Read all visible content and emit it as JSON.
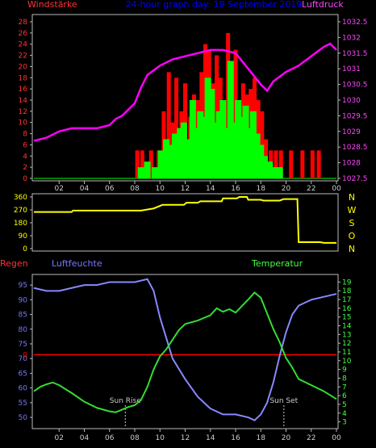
{
  "colors": {
    "background": "#000000",
    "axis": "#bbbbbb",
    "wind_gust": "#ff0000",
    "wind_avg": "#00ff00",
    "pressure": "#ff00ff",
    "direction": "#ffff00",
    "rain_line": "#ff0000",
    "humidity": "#8888ff",
    "temperature": "#33dd33",
    "marker": "#cccccc",
    "left_axis_labels": "#ff3333",
    "right_axis_labels": "#ff44ff",
    "direction_labels": "#ffff00",
    "bottom_left_labels": "#7777ff",
    "bottom_right_labels": "#44ff44",
    "title": "#0000ff"
  },
  "chart_data": [
    {
      "type": "bar",
      "title": "24-hour graph day: 19 September 2019",
      "left_label": "Windstärke",
      "right_label": "Luftdruck",
      "x_ticks": [
        "02",
        "04",
        "06",
        "08",
        "10",
        "12",
        "14",
        "16",
        "18",
        "20",
        "22",
        "00"
      ],
      "y_left_ticks": [
        "0",
        "2",
        "4",
        "6",
        "8",
        "10",
        "12",
        "14",
        "16",
        "18",
        "20",
        "22",
        "24",
        "26",
        "28"
      ],
      "y_right_ticks": [
        "1027.5",
        "1028",
        "1028.5",
        "1029",
        "1029.5",
        "1030",
        "1030.5",
        "1031",
        "1031.5",
        "1032",
        "1032.5"
      ],
      "xlim_hours": [
        0,
        24
      ],
      "ylim_left": [
        0,
        28
      ],
      "ylim_right": [
        1027.5,
        1032.5
      ],
      "series": [
        {
          "name": "",
          "kind": "bar",
          "axis": "left",
          "color_key": "wind_gust",
          "hours": [
            8.2,
            8.6,
            9.3,
            9.9,
            10.3,
            10.7,
            11.0,
            11.3,
            11.7,
            12.0,
            12.4,
            12.7,
            13.0,
            13.3,
            13.6,
            13.9,
            14.2,
            14.5,
            14.8,
            15.1,
            15.4,
            15.7,
            16.0,
            16.3,
            16.6,
            16.9,
            17.2,
            17.5,
            17.8,
            18.1,
            18.4,
            18.8,
            19.2,
            19.6,
            20.4,
            21.3,
            22.1,
            22.6
          ],
          "values": [
            5,
            5,
            5,
            5,
            12,
            19,
            10,
            18,
            12,
            17,
            11,
            15,
            14,
            19,
            24,
            23,
            17,
            22,
            18,
            13,
            26,
            14,
            23,
            12,
            17,
            15,
            16,
            18,
            14,
            12,
            7,
            5,
            5,
            5,
            5,
            5,
            5,
            5
          ]
        },
        {
          "name": "",
          "kind": "bar",
          "axis": "left",
          "color_key": "wind_avg",
          "hours": [
            8.5,
            9.0,
            9.6,
            10.1,
            10.5,
            10.9,
            11.2,
            11.6,
            11.9,
            12.2,
            12.6,
            12.9,
            13.2,
            13.5,
            13.8,
            14.1,
            14.4,
            14.7,
            15.0,
            15.3,
            15.6,
            15.9,
            16.2,
            16.5,
            16.8,
            17.1,
            17.4,
            17.7,
            18.0,
            18.3,
            18.7,
            19.1,
            19.5
          ],
          "values": [
            2,
            3,
            2,
            5,
            7,
            6,
            8,
            9,
            10,
            7,
            14,
            9,
            12,
            11,
            18,
            16,
            10,
            12,
            14,
            9,
            21,
            10,
            14,
            11,
            13,
            9,
            12,
            8,
            6,
            4,
            3,
            2,
            2
          ]
        },
        {
          "name": "",
          "kind": "line",
          "axis": "right",
          "color_key": "pressure",
          "hours": [
            0,
            1,
            2,
            3,
            4,
            5,
            6,
            6.5,
            7,
            8,
            8.5,
            9,
            10,
            11,
            12,
            13,
            14,
            15,
            16,
            17,
            18,
            18.5,
            19,
            20,
            21,
            22,
            23,
            23.5,
            24
          ],
          "values": [
            1028.7,
            1028.8,
            1029.0,
            1029.1,
            1029.1,
            1029.1,
            1029.2,
            1029.4,
            1029.5,
            1029.9,
            1030.4,
            1030.8,
            1031.1,
            1031.3,
            1031.4,
            1031.5,
            1031.6,
            1031.6,
            1031.5,
            1031.0,
            1030.5,
            1030.3,
            1030.6,
            1030.9,
            1031.1,
            1031.4,
            1031.7,
            1031.8,
            1031.6
          ]
        }
      ]
    },
    {
      "type": "line",
      "right_labels": [
        "N",
        "W",
        "S",
        "O",
        "N"
      ],
      "y_left_ticks": [
        "0",
        "90",
        "180",
        "270",
        "360"
      ],
      "ylim": [
        0,
        360
      ],
      "xlim_hours": [
        0,
        24
      ],
      "series": [
        {
          "name": "",
          "color_key": "direction",
          "hours": [
            0,
            3,
            3.1,
            8.5,
            9.5,
            10.2,
            11.9,
            12.1,
            13.0,
            13.2,
            14.9,
            15.0,
            16.1,
            16.3,
            16.9,
            17.0,
            18.0,
            18.2,
            19.5,
            19.8,
            20.9,
            21.0,
            22.7,
            23.0,
            24
          ],
          "values": [
            255,
            255,
            265,
            265,
            280,
            305,
            305,
            320,
            320,
            330,
            330,
            350,
            350,
            360,
            360,
            340,
            340,
            335,
            335,
            345,
            345,
            45,
            45,
            40,
            40
          ]
        }
      ]
    },
    {
      "type": "line",
      "left_label": "Regen",
      "humidity_label": "Luftfeuchte",
      "temperature_label": "Temperatur",
      "y_left_ticks": [
        "50",
        "55",
        "60",
        "65",
        "70",
        "75",
        "80",
        "85",
        "90",
        "95"
      ],
      "y_right_ticks": [
        "3",
        "4",
        "5",
        "6",
        "7",
        "8",
        "9",
        "10",
        "11",
        "12",
        "13",
        "14",
        "15",
        "16",
        "17",
        "18",
        "19"
      ],
      "rain_tick": "0",
      "ylim_humidity": [
        47,
        97.5
      ],
      "ylim_temperature": [
        2.5,
        19.5
      ],
      "rain_value": 0,
      "rain_level_percent": 72,
      "annotations": [
        {
          "label": "Sun Rise",
          "hour": 7.25
        },
        {
          "label": "Sun Set",
          "hour": 19.83
        }
      ],
      "x_ticks": [
        "02",
        "04",
        "06",
        "08",
        "10",
        "12",
        "14",
        "16",
        "18",
        "20",
        "22",
        "00"
      ],
      "xlim_hours": [
        0,
        24
      ],
      "series": [
        {
          "name": "Luftfeuchte",
          "color_key": "humidity",
          "hours": [
            0,
            1,
            2,
            3,
            4,
            5,
            6,
            7,
            8,
            9,
            9.5,
            10,
            10.5,
            11,
            12,
            13,
            14,
            15,
            16,
            17,
            17.5,
            18,
            18.5,
            19,
            19.5,
            20,
            20.5,
            21,
            22,
            23,
            24
          ],
          "values": [
            94,
            93,
            93,
            94,
            95,
            95,
            96,
            96,
            96,
            97,
            93,
            84,
            77,
            70,
            63,
            57,
            53,
            51,
            51,
            50,
            49,
            51,
            55,
            62,
            71,
            79,
            85,
            88,
            90,
            91,
            92
          ]
        },
        {
          "name": "Temperatur",
          "color_key": "temperature",
          "hours": [
            0,
            0.5,
            1,
            1.5,
            2,
            3,
            4,
            5,
            6,
            6.5,
            7,
            7.5,
            8,
            8.5,
            9,
            9.5,
            10,
            10.5,
            11,
            11.5,
            12,
            13,
            14,
            14.5,
            15,
            15.5,
            16,
            17,
            17.5,
            18,
            18.5,
            19,
            19.5,
            20,
            20.5,
            21,
            22,
            23,
            24
          ],
          "values": [
            6.5,
            7.0,
            7.3,
            7.5,
            7.2,
            6.3,
            5.3,
            4.6,
            4.2,
            4.1,
            4.4,
            4.7,
            4.9,
            5.5,
            7.0,
            9.0,
            10.5,
            11.3,
            12.4,
            13.5,
            14.2,
            14.6,
            15.2,
            16.0,
            15.6,
            15.9,
            15.5,
            17.0,
            17.8,
            17.2,
            15.4,
            13.6,
            12.1,
            10.3,
            9.2,
            7.9,
            7.2,
            6.5,
            5.6
          ]
        }
      ]
    }
  ]
}
